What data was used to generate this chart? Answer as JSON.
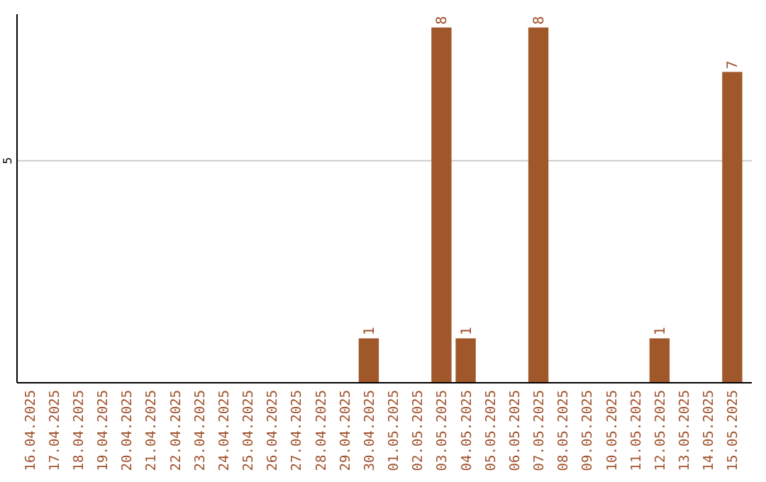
{
  "chart_data": {
    "type": "bar",
    "categories": [
      "16.04.2025",
      "17.04.2025",
      "18.04.2025",
      "19.04.2025",
      "20.04.2025",
      "21.04.2025",
      "22.04.2025",
      "23.04.2025",
      "24.04.2025",
      "25.04.2025",
      "26.04.2025",
      "27.04.2025",
      "28.04.2025",
      "29.04.2025",
      "30.04.2025",
      "01.05.2025",
      "02.05.2025",
      "03.05.2025",
      "04.05.2025",
      "05.05.2025",
      "06.05.2025",
      "07.05.2025",
      "08.05.2025",
      "09.05.2025",
      "10.05.2025",
      "11.05.2025",
      "12.05.2025",
      "13.05.2025",
      "14.05.2025",
      "15.05.2025"
    ],
    "values": [
      null,
      null,
      null,
      null,
      null,
      null,
      null,
      null,
      null,
      null,
      null,
      null,
      null,
      null,
      1,
      null,
      null,
      8,
      1,
      null,
      null,
      8,
      null,
      null,
      null,
      null,
      1,
      null,
      null,
      7
    ],
    "value_labels": [
      null,
      null,
      null,
      null,
      null,
      null,
      null,
      null,
      null,
      null,
      null,
      null,
      null,
      null,
      "1",
      null,
      null,
      "8",
      "1",
      null,
      null,
      "8",
      null,
      null,
      null,
      null,
      "1",
      null,
      null,
      "7"
    ],
    "ylim": [
      0,
      8.3
    ],
    "color": "#a0582a",
    "ref_lines": [
      {
        "axis": "y",
        "value": 5,
        "label": "5",
        "color": "#cccccc"
      }
    ]
  }
}
